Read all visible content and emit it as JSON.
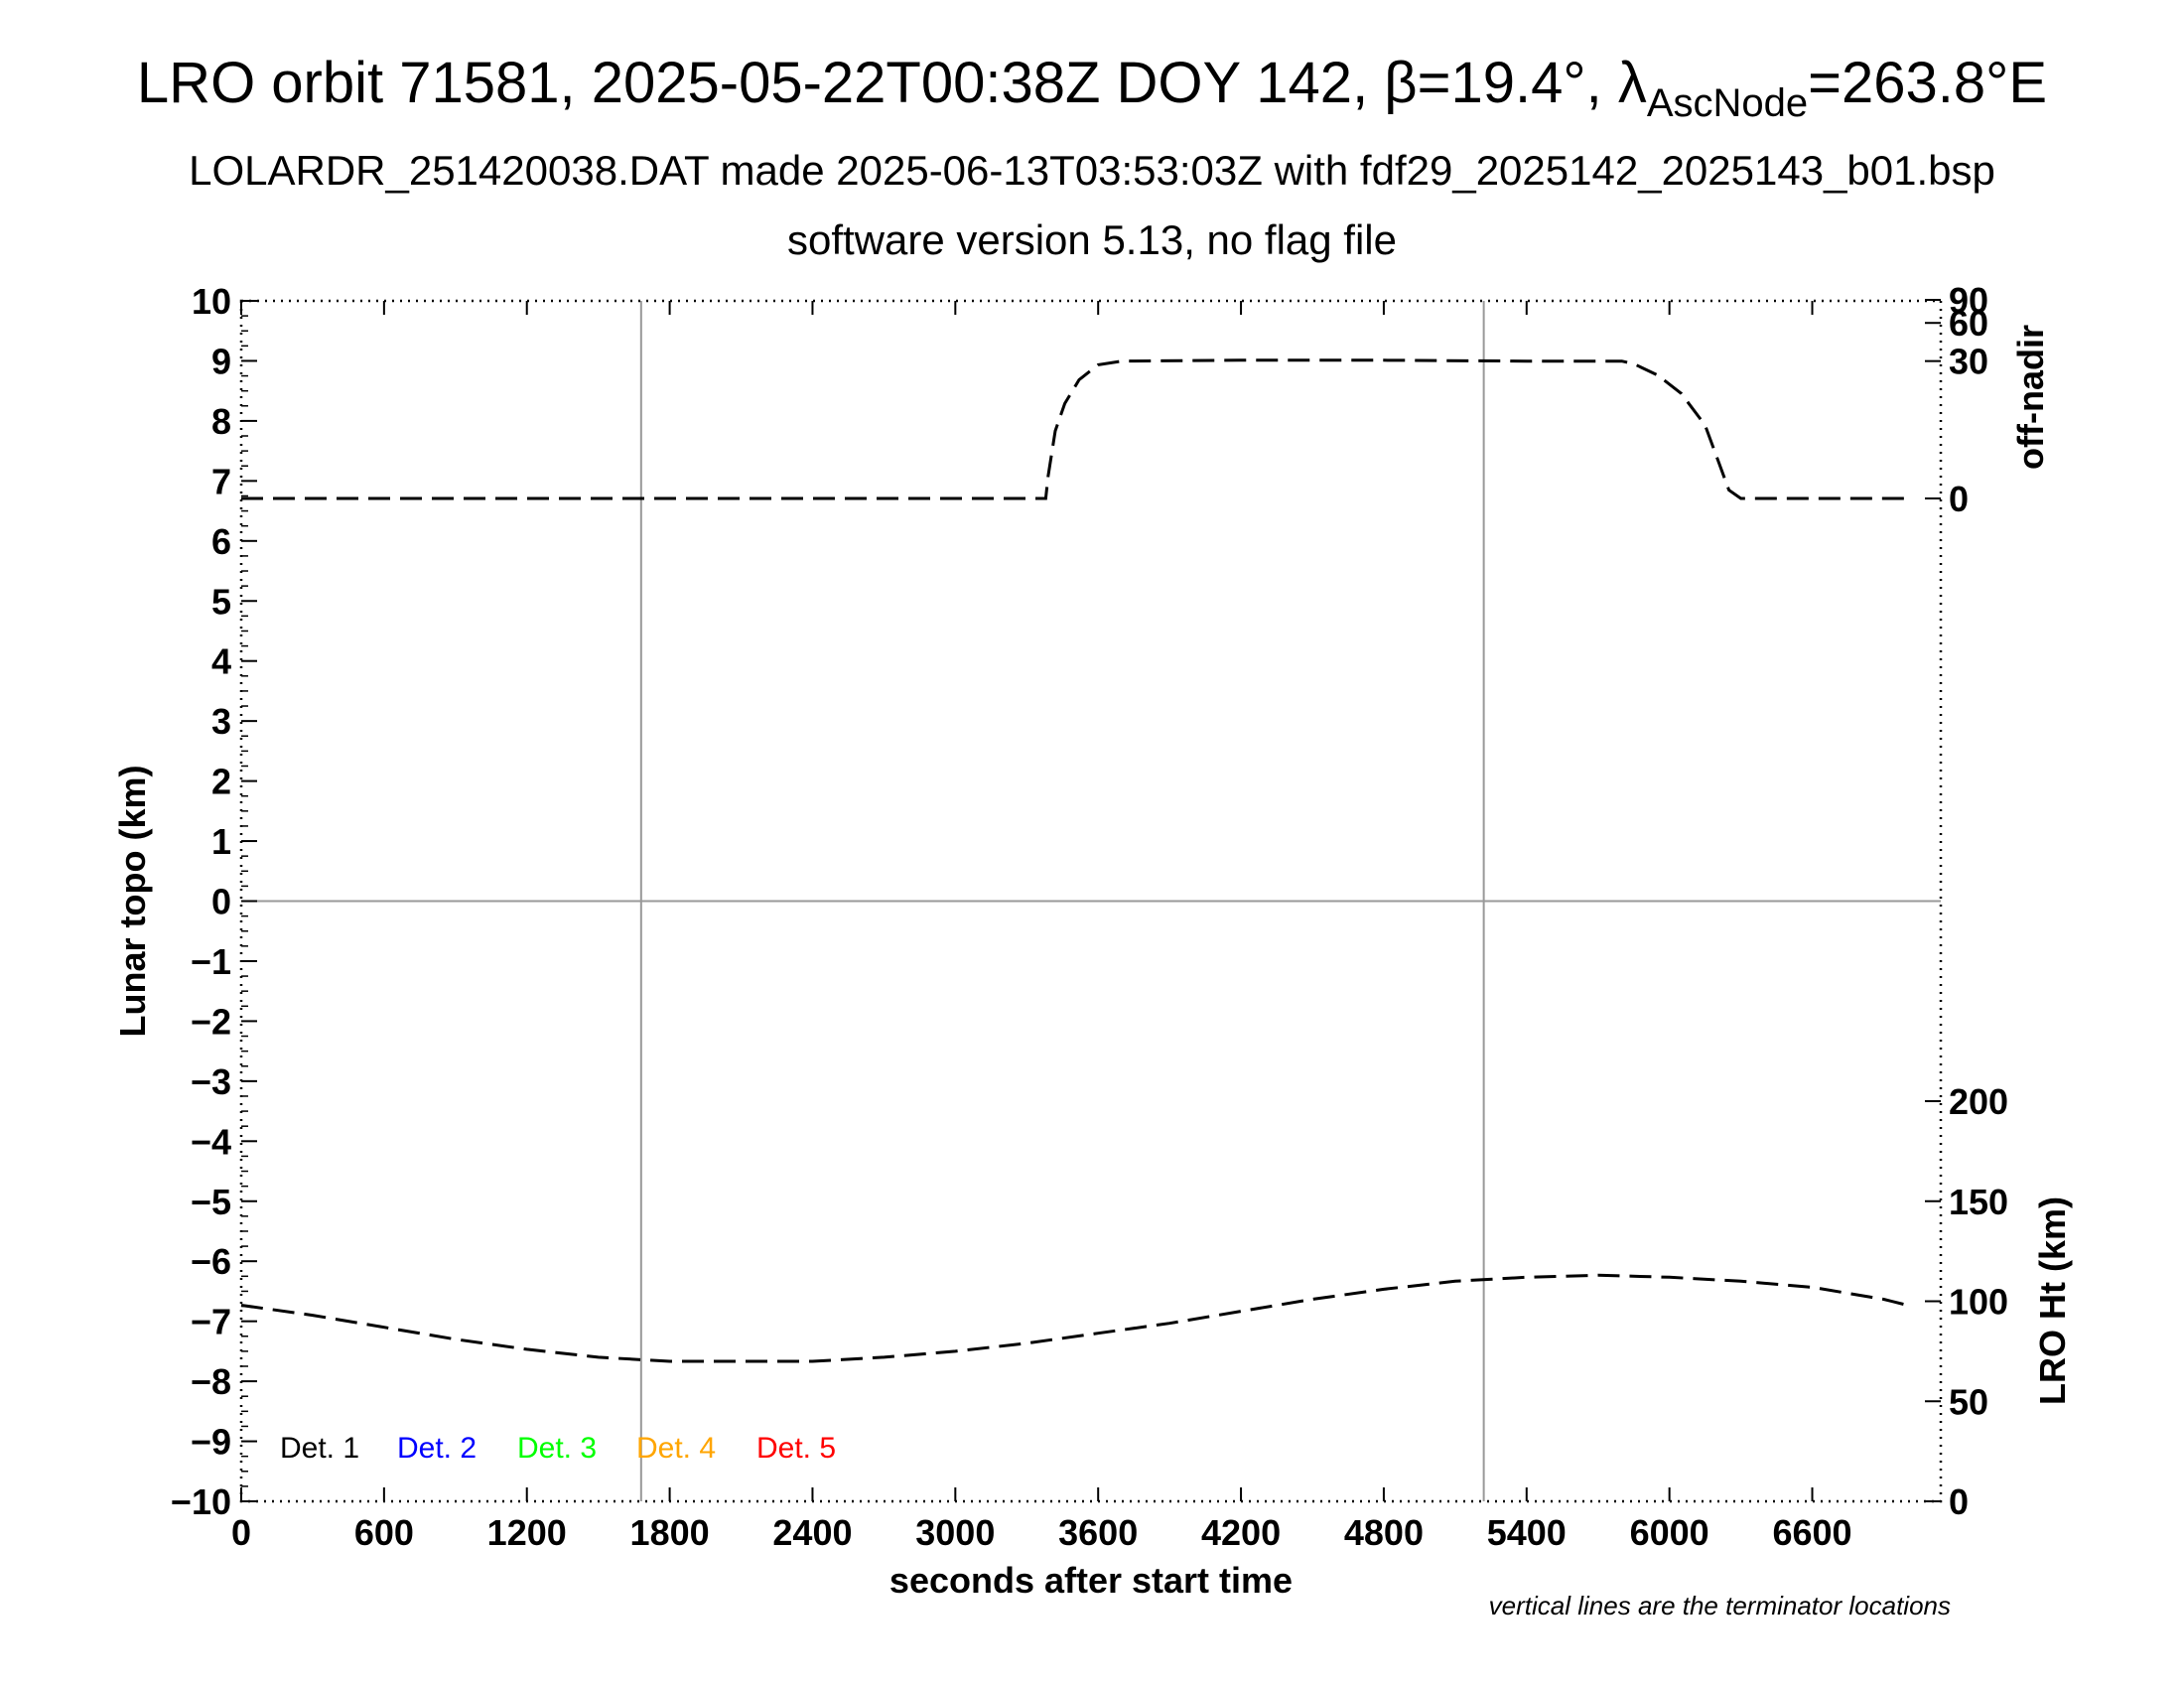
{
  "header": {
    "title_prefix": "LRO orbit 71581, 2025-05-22T00:38Z DOY 142, β=19.4°, λ",
    "title_sub": "AscNode",
    "title_suffix": "=263.8°E",
    "subtitle": "LOLARDR_251420038.DAT made 2025-06-13T03:53:03Z with fdf29_2025142_2025143_b01.bsp",
    "subtitle2": "software version 5.13, no flag file"
  },
  "footnote": "vertical lines are the terminator locations",
  "chart_data": {
    "type": "line",
    "xlabel": "seconds after start time",
    "ylabel": "Lunar topo (km)",
    "ylabel_right_top": "off-nadir",
    "ylabel_right_bottom": "LRO Ht (km)",
    "xlim": [
      0,
      7140
    ],
    "ylim": [
      -10,
      10
    ],
    "x_ticks": [
      0,
      600,
      1200,
      1800,
      2400,
      3000,
      3600,
      4200,
      4800,
      5400,
      6000,
      6600
    ],
    "y_ticks": [
      "10",
      "9",
      "8",
      "7",
      "6",
      "5",
      "4",
      "3",
      "2",
      "1",
      "0",
      "−1",
      "−2",
      "−3",
      "−4",
      "−5",
      "−6",
      "−7",
      "−8",
      "−9",
      "−10"
    ],
    "y_tick_values": [
      10,
      9,
      8,
      7,
      6,
      5,
      4,
      3,
      2,
      1,
      0,
      -1,
      -2,
      -3,
      -4,
      -5,
      -6,
      -7,
      -8,
      -9,
      -10
    ],
    "off_nadir_ticks": [
      "90",
      "60",
      "30",
      "0"
    ],
    "off_nadir_tick_values": [
      90,
      60,
      30,
      0
    ],
    "lro_ht_ticks": [
      "200",
      "150",
      "100",
      "50",
      "0"
    ],
    "lro_ht_tick_values": [
      200,
      150,
      100,
      50,
      0
    ],
    "terminators": [
      1680,
      5220
    ],
    "grid": "partial",
    "legend_placement": "bottom-left",
    "legend": [
      {
        "label": "Det. 1",
        "color": "#000000"
      },
      {
        "label": "Det. 2",
        "color": "#0000ff"
      },
      {
        "label": "Det. 3",
        "color": "#00ff00"
      },
      {
        "label": "Det. 4",
        "color": "#ffa500"
      },
      {
        "label": "Det. 5",
        "color": "#ff0000"
      }
    ],
    "series": [
      {
        "axis": "off-nadir",
        "values_note": "",
        "x": [
          0,
          600,
          1200,
          1800,
          2400,
          3000,
          3380,
          3390,
          3420,
          3460,
          3520,
          3600,
          3700,
          4200,
          4800,
          5400,
          5800,
          5850,
          5950,
          6050,
          6150,
          6250,
          6300,
          6400,
          6500,
          7000
        ],
        "y": [
          0,
          0,
          0,
          0,
          0,
          0,
          0,
          1.5,
          7,
          13,
          21,
          28,
          30,
          30.5,
          30.5,
          30,
          30,
          28.5,
          23,
          16,
          8,
          0.5,
          0,
          0,
          0,
          0
        ]
      },
      {
        "axis": "lro-ht",
        "x": [
          0,
          300,
          600,
          900,
          1200,
          1500,
          1800,
          2100,
          2400,
          2700,
          3000,
          3300,
          3600,
          3900,
          4200,
          4500,
          4800,
          5100,
          5400,
          5700,
          6000,
          6300,
          6600,
          6900,
          7000
        ],
        "y": [
          98,
          93,
          87,
          81,
          76,
          72,
          70,
          70,
          70,
          72,
          75,
          79,
          84,
          89,
          95,
          101,
          106,
          110,
          112,
          113,
          112,
          110,
          107,
          101,
          98
        ]
      }
    ]
  }
}
